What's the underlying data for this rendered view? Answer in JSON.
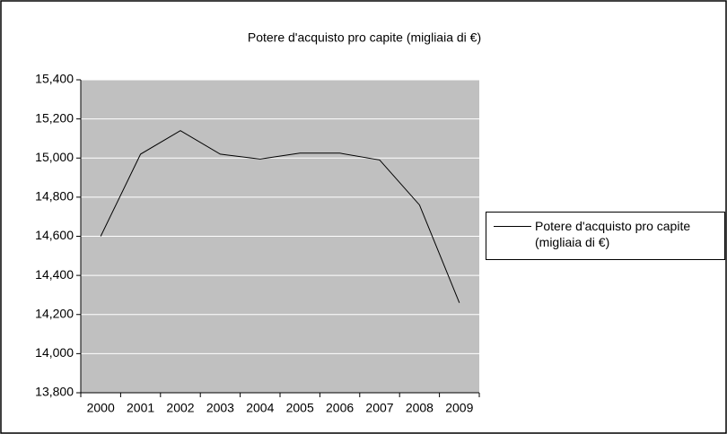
{
  "chart_data": {
    "type": "line",
    "title": "Potere d'acquisto pro capite (migliaia di €)",
    "categories": [
      "2000",
      "2001",
      "2002",
      "2003",
      "2004",
      "2005",
      "2006",
      "2007",
      "2008",
      "2009"
    ],
    "series": [
      {
        "name": "Potere d'acquisto pro capite (migliaia di €)",
        "color": "#000000",
        "values": [
          14600,
          15020,
          15140,
          15020,
          14995,
          15025,
          15025,
          14990,
          14760,
          14260
        ]
      }
    ],
    "ylim": [
      13800,
      15400
    ],
    "yticks": [
      {
        "value": 13800,
        "label": "13,800"
      },
      {
        "value": 14000,
        "label": "14,000"
      },
      {
        "value": 14200,
        "label": "14,200"
      },
      {
        "value": 14400,
        "label": "14,400"
      },
      {
        "value": 14600,
        "label": "14,600"
      },
      {
        "value": 14800,
        "label": "14,800"
      },
      {
        "value": 15000,
        "label": "15,000"
      },
      {
        "value": 15200,
        "label": "15,200"
      },
      {
        "value": 15400,
        "label": "15,400"
      }
    ],
    "grid": true,
    "legend": "right",
    "plot_background": "#c0c0c0"
  }
}
